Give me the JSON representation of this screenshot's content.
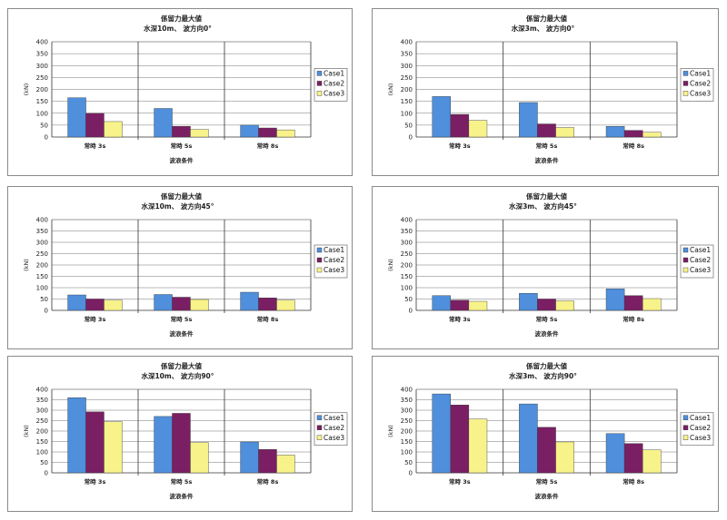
{
  "colors": {
    "case1": "#4f8fdc",
    "case2": "#7a1f63",
    "case3": "#f7f28a"
  },
  "chart_data": [
    {
      "type": "bar",
      "title": "係留力最大値",
      "subtitle": "水深10m、 波方向0°",
      "xlabel": "波浪条件",
      "ylabel": "(kN)",
      "ylim": [
        0,
        400
      ],
      "yticks": [
        "0",
        "50",
        "100",
        "150",
        "200",
        "250",
        "300",
        "350",
        "400"
      ],
      "categories": [
        "常時 3s",
        "常時 5s",
        "常時 8s"
      ],
      "legend": "right",
      "series": [
        {
          "name": "Case1",
          "values": [
            165,
            120,
            50
          ]
        },
        {
          "name": "Case2",
          "values": [
            100,
            45,
            38
          ]
        },
        {
          "name": "Case3",
          "values": [
            65,
            32,
            30
          ]
        }
      ]
    },
    {
      "type": "bar",
      "title": "係留力最大値",
      "subtitle": "水深3m、 波方向0°",
      "xlabel": "波浪条件",
      "ylabel": "(kN)",
      "ylim": [
        0,
        400
      ],
      "yticks": [
        "0",
        "50",
        "100",
        "150",
        "200",
        "250",
        "300",
        "350",
        "400"
      ],
      "categories": [
        "常時 3s",
        "常時 5s",
        "常時 8s"
      ],
      "legend": "right",
      "series": [
        {
          "name": "Case1",
          "values": [
            170,
            145,
            45
          ]
        },
        {
          "name": "Case2",
          "values": [
            95,
            55,
            28
          ]
        },
        {
          "name": "Case3",
          "values": [
            70,
            40,
            20
          ]
        }
      ]
    },
    {
      "type": "bar",
      "title": "係留力最大値",
      "subtitle": "水深10m、 波方向45°",
      "xlabel": "波浪条件",
      "ylabel": "(kN)",
      "ylim": [
        0,
        400
      ],
      "yticks": [
        "0",
        "50",
        "100",
        "150",
        "200",
        "250",
        "300",
        "350",
        "400"
      ],
      "categories": [
        "常時 3s",
        "常時 5s",
        "常時 8s"
      ],
      "legend": "right",
      "series": [
        {
          "name": "Case1",
          "values": [
            68,
            70,
            80
          ]
        },
        {
          "name": "Case2",
          "values": [
            50,
            58,
            55
          ]
        },
        {
          "name": "Case3",
          "values": [
            45,
            48,
            45
          ]
        }
      ]
    },
    {
      "type": "bar",
      "title": "係留力最大値",
      "subtitle": "水深3m、 波方向45°",
      "xlabel": "波浪条件",
      "ylabel": "(kN)",
      "ylim": [
        0,
        400
      ],
      "yticks": [
        "0",
        "50",
        "100",
        "150",
        "200",
        "250",
        "300",
        "350",
        "400"
      ],
      "categories": [
        "常時 3s",
        "常時 5s",
        "常時 8s"
      ],
      "legend": "right",
      "series": [
        {
          "name": "Case1",
          "values": [
            65,
            75,
            95
          ]
        },
        {
          "name": "Case2",
          "values": [
            45,
            50,
            65
          ]
        },
        {
          "name": "Case3",
          "values": [
            40,
            42,
            52
          ]
        }
      ]
    },
    {
      "type": "bar",
      "title": "係留力最大値",
      "subtitle": "水深10m、 波方向90°",
      "xlabel": "波浪条件",
      "ylabel": "(kN)",
      "ylim": [
        0,
        400
      ],
      "yticks": [
        "0",
        "50",
        "100",
        "150",
        "200",
        "250",
        "300",
        "350",
        "400"
      ],
      "categories": [
        "常時 3s",
        "常時 5s",
        "常時 8s"
      ],
      "legend": "right",
      "series": [
        {
          "name": "Case1",
          "values": [
            360,
            270,
            148
          ]
        },
        {
          "name": "Case2",
          "values": [
            292,
            285,
            112
          ]
        },
        {
          "name": "Case3",
          "values": [
            245,
            145,
            85
          ]
        }
      ]
    },
    {
      "type": "bar",
      "title": "係留力最大値",
      "subtitle": "水深3m、 波方向90°",
      "xlabel": "波浪条件",
      "ylabel": "(kN)",
      "ylim": [
        0,
        400
      ],
      "yticks": [
        "0",
        "50",
        "100",
        "150",
        "200",
        "250",
        "300",
        "350",
        "400"
      ],
      "categories": [
        "常時 3s",
        "常時 5s",
        "常時 8s"
      ],
      "legend": "right",
      "series": [
        {
          "name": "Case1",
          "values": [
            378,
            330,
            188
          ]
        },
        {
          "name": "Case2",
          "values": [
            325,
            218,
            140
          ]
        },
        {
          "name": "Case3",
          "values": [
            258,
            148,
            110
          ]
        }
      ]
    }
  ]
}
